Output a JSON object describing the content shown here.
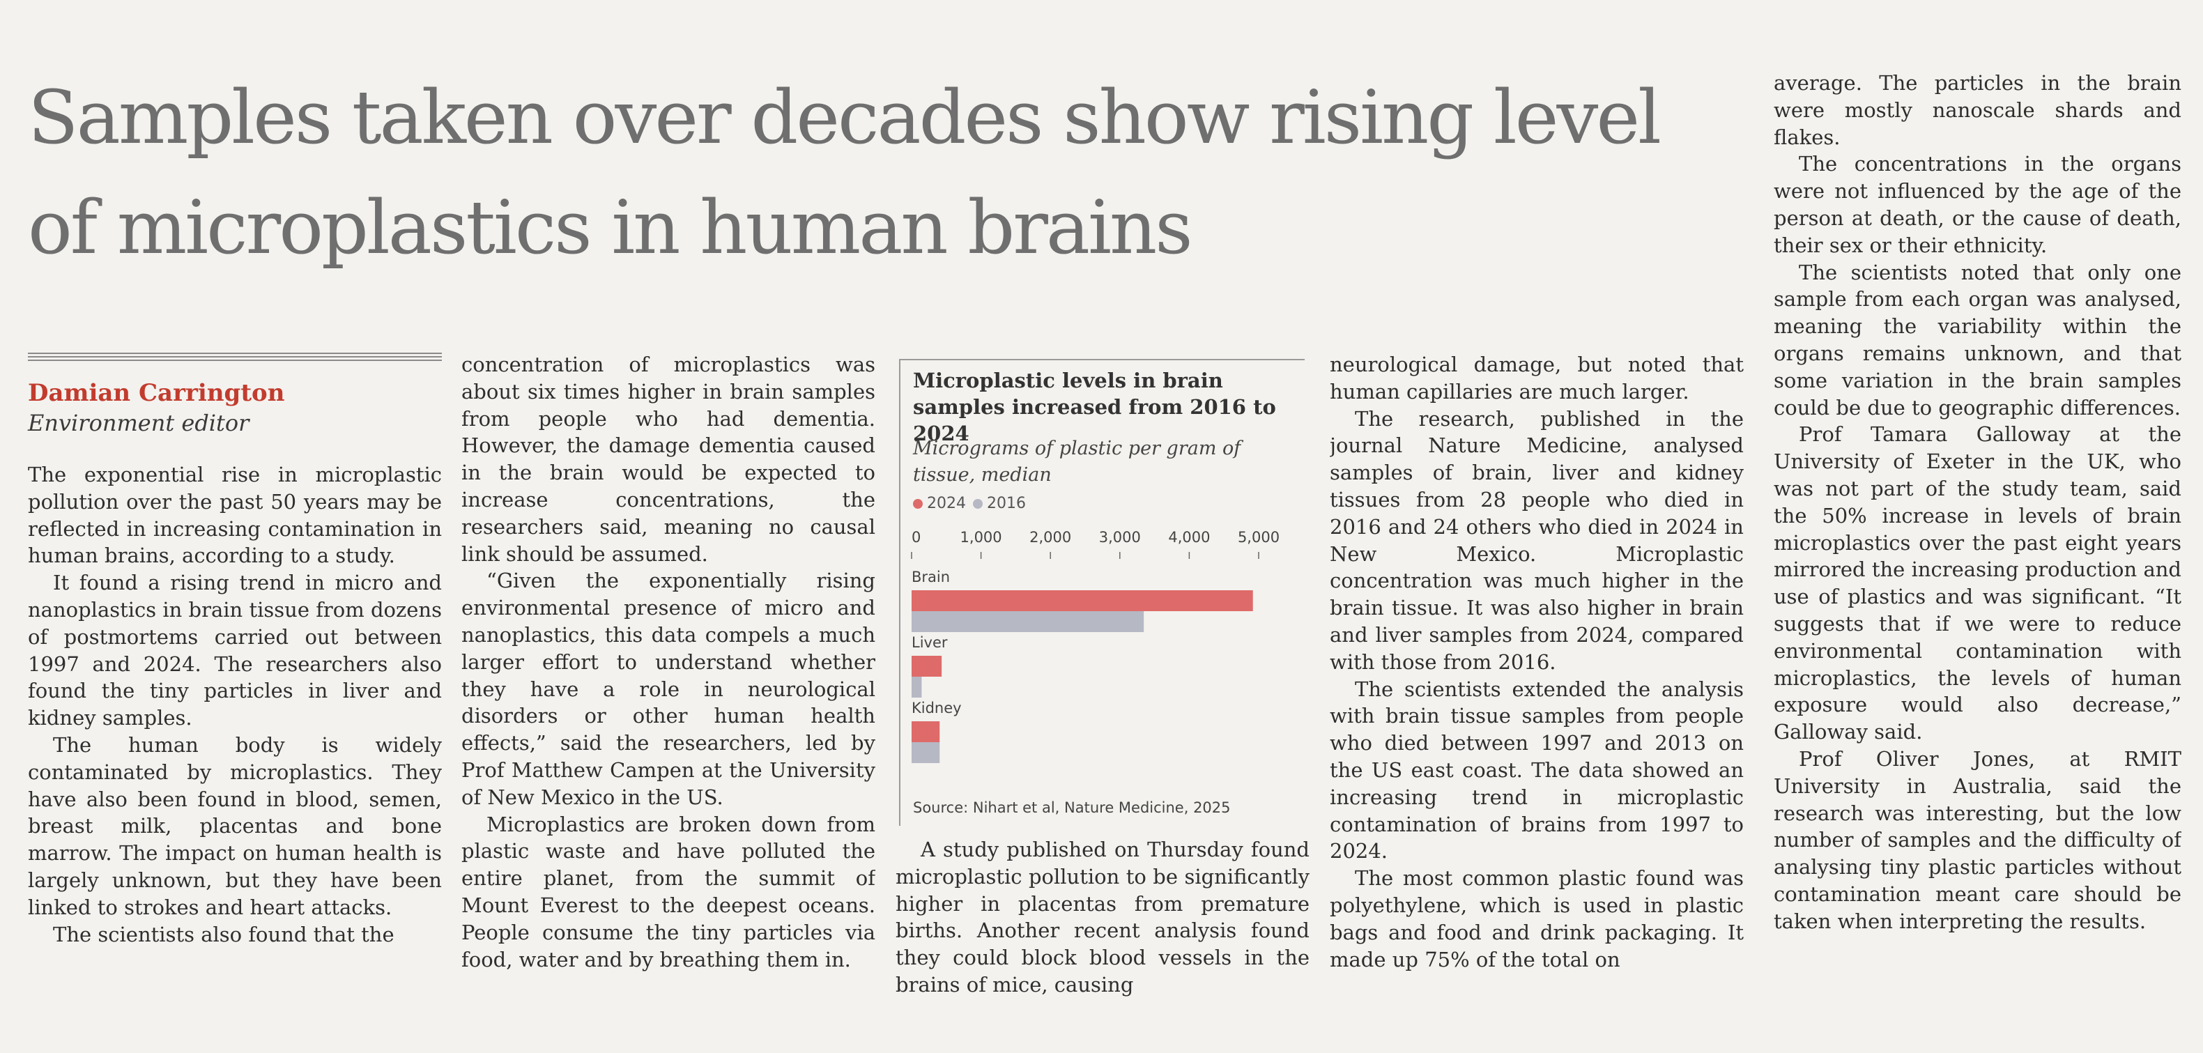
{
  "article": {
    "headline": "Samples taken over decades show rising level of microplastics in human brains",
    "author": "Damian Carrington",
    "role": "Environment editor",
    "col1": [
      "The exponential rise in microplastic pollution over the past 50 years may be reflected in increasing contamination in human brains, according to a study.",
      "It found a rising trend in micro and nanoplastics in brain tissue from dozens of postmortems carried out between 1997 and 2024. The researchers also found the tiny particles in liver and kidney samples.",
      "The human body is widely contaminated by microplastics. They have also been found in blood, semen, breast milk, placentas and bone marrow. The impact on human health is largely unknown, but they have been linked to strokes and heart attacks.",
      "The scientists also found that the"
    ],
    "col2": [
      "concentration of microplastics was about six times higher in brain samples from people who had dementia. However, the damage dementia caused in the brain would be expected to increase concentrations, the researchers said, meaning no causal link should be assumed.",
      "“Given the exponentially rising environmental presence of micro and nanoplastics, this data compels a much larger effort to understand whether they have a role in neurological disorders or other human health effects,” said the researchers, led by Prof Matthew Campen at the University of New Mexico in the US.",
      "Microplastics are broken down from plastic waste and have polluted the entire planet, from the summit of Mount Everest to the deepest oceans. People consume the tiny particles via food, water and by breathing them in."
    ],
    "col3": [
      "A study published on Thursday found microplastic pollution to be significantly higher in placentas from premature births. Another recent analysis found they could block blood vessels in the brains of mice, causing"
    ],
    "col4": [
      "neurological damage, but noted that human capillaries are much larger.",
      "The research, published in the journal Nature Medicine, analysed samples of brain, liver and kidney tissues from 28 people who died in 2016 and 24 others who died in 2024 in New Mexico. Microplastic concentration was much higher in the brain tissue. It was also higher in brain and liver samples from 2024, compared with those from 2016.",
      "The scientists extended the analysis with brain tissue samples from people who died between 1997 and 2013 on the US east coast. The data showed an increasing trend in microplastic contamination of brains from 1997 to 2024.",
      "The most common plastic found was polyethylene, which is used in plastic bags and food and drink packaging. It made up 75% of the total on"
    ],
    "col5": [
      "average. The particles in the brain were mostly nanoscale shards and flakes.",
      "The concentrations in the organs were not influenced by the age of the person at death, or the cause of death, their sex or their ethnicity.",
      "The scientists noted that only one sample from each organ was analysed, meaning the variability within the organs remains unknown, and that some variation in the brain samples could be due to geographic differences.",
      "Prof Tamara Galloway at the University of Exeter in the UK, who was not part of the study team, said the 50% increase in levels of brain microplastics over the past eight years mirrored the increasing production and use of plastics and was significant. “It suggests that if we were to reduce environmental contamination with microplastics, the levels of human exposure would also decrease,” Galloway said.",
      "Prof Oliver Jones, at RMIT University in Australia, said the research was interesting, but the low number of samples and the difficulty of analysing tiny plastic particles without contamination meant care should be taken when interpreting the results."
    ]
  },
  "colors": {
    "accent": "#c23c2e",
    "bar_2024": "#de6b69",
    "bar_2016": "#b6b8c4"
  },
  "chart_data": {
    "type": "bar",
    "orientation": "horizontal",
    "title": "Microplastic levels in brain samples increased from 2016 to 2024",
    "subtitle": "Micrograms of plastic per gram of tissue, median",
    "xlim": [
      0,
      5000
    ],
    "ticks": [
      0,
      1000,
      2000,
      3000,
      4000,
      5000
    ],
    "tick_labels": [
      "0",
      "1,000",
      "2,000",
      "3,000",
      "4,000",
      "5,000"
    ],
    "legend_position": "top-left",
    "categories": [
      "Brain",
      "Liver",
      "Kidney"
    ],
    "series": [
      {
        "name": "2024",
        "color": "#de6b69",
        "values": [
          4917,
          433,
          404
        ]
      },
      {
        "name": "2016",
        "color": "#b6b8c4",
        "values": [
          3345,
          145,
          404
        ]
      }
    ],
    "source": "Source: Nihart et al, Nature Medicine, 2025"
  }
}
